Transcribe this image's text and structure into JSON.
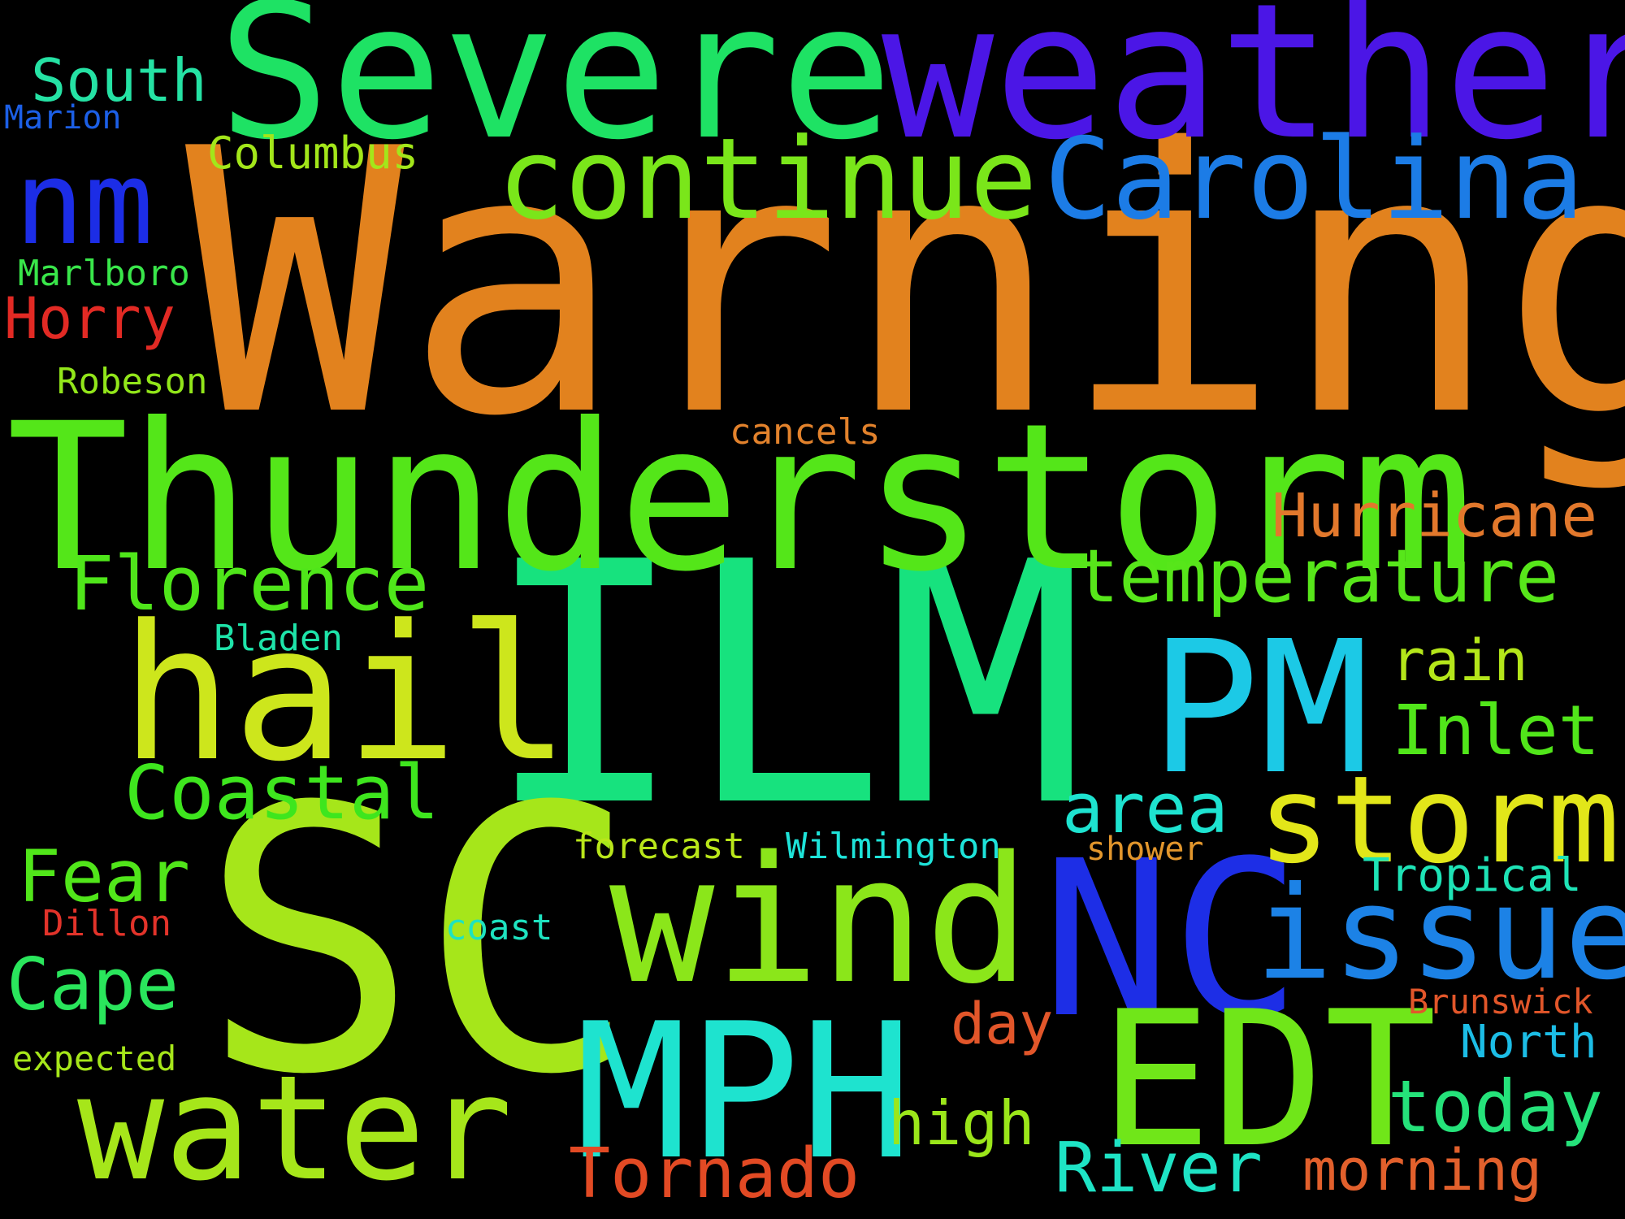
{
  "words": [
    {
      "text": "Warning",
      "color": "#e2821e"
    },
    {
      "text": "ILM",
      "color": "#17e27e"
    },
    {
      "text": "SC",
      "color": "#a6e61a"
    },
    {
      "text": "Thunderstorm",
      "color": "#54e619"
    },
    {
      "text": "Severe",
      "color": "#1ee264"
    },
    {
      "text": "weather",
      "color": "#4b16e6"
    },
    {
      "text": "NC",
      "color": "#1d2ee6"
    },
    {
      "text": "hail",
      "color": "#cde61c"
    },
    {
      "text": "wind",
      "color": "#8be61a"
    },
    {
      "text": "MPH",
      "color": "#1ee3cf"
    },
    {
      "text": "EDT",
      "color": "#70e619"
    },
    {
      "text": "PM",
      "color": "#1cc9e6"
    },
    {
      "text": "water",
      "color": "#a6e61a"
    },
    {
      "text": "continue",
      "color": "#7ae61a"
    },
    {
      "text": "Carolina",
      "color": "#1c7ce6"
    },
    {
      "text": "issue",
      "color": "#1c82e6"
    },
    {
      "text": "storm",
      "color": "#e2e619"
    },
    {
      "text": "nm",
      "color": "#1c2de6"
    },
    {
      "text": "temperature",
      "color": "#57e61a"
    },
    {
      "text": "Hurricane",
      "color": "#e2782c"
    },
    {
      "text": "Florence",
      "color": "#4fe61a"
    },
    {
      "text": "Coastal",
      "color": "#3ee61e"
    },
    {
      "text": "Inlet",
      "color": "#51e61a"
    },
    {
      "text": "rain",
      "color": "#b4e61a"
    },
    {
      "text": "area",
      "color": "#1ee3d0"
    },
    {
      "text": "today",
      "color": "#25e27a"
    },
    {
      "text": "River",
      "color": "#1ee3c5"
    },
    {
      "text": "Tornado",
      "color": "#e24a24"
    },
    {
      "text": "morning",
      "color": "#e2602c"
    },
    {
      "text": "high",
      "color": "#9be61a"
    },
    {
      "text": "Cape",
      "color": "#2ae65c"
    },
    {
      "text": "Fear",
      "color": "#51e61a"
    },
    {
      "text": "day",
      "color": "#e2562a"
    },
    {
      "text": "South",
      "color": "#25e2a4"
    },
    {
      "text": "Horry",
      "color": "#e22a24"
    },
    {
      "text": "Tropical",
      "color": "#1ee3b6"
    },
    {
      "text": "North",
      "color": "#1cbde6"
    },
    {
      "text": "Columbus",
      "color": "#a3e61a"
    },
    {
      "text": "Marion",
      "color": "#1c5fe6"
    },
    {
      "text": "Marlboro",
      "color": "#39e64a"
    },
    {
      "text": "Robeson",
      "color": "#92e61a"
    },
    {
      "text": "cancels",
      "color": "#e2822c"
    },
    {
      "text": "Bladen",
      "color": "#1ee3a9"
    },
    {
      "text": "forecast",
      "color": "#b9e61a"
    },
    {
      "text": "Wilmington",
      "color": "#1ee3d9"
    },
    {
      "text": "shower",
      "color": "#e2962c"
    },
    {
      "text": "coast",
      "color": "#1ee3c0"
    },
    {
      "text": "Dillon",
      "color": "#e2332a"
    },
    {
      "text": "Brunswick",
      "color": "#e2562a"
    },
    {
      "text": "expected",
      "color": "#a6e61a"
    }
  ]
}
